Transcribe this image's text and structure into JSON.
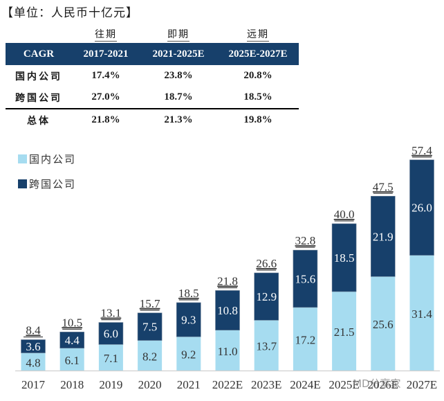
{
  "unit_label": "【单位：人民币十亿元】",
  "table": {
    "periods": [
      "",
      "往期",
      "即期",
      "远期"
    ],
    "header": [
      "CAGR",
      "2017-2021",
      "2021-2025E",
      "2025E-2027E"
    ],
    "rows": [
      {
        "label": "国内公司",
        "values": [
          "17.4%",
          "23.8%",
          "20.8%"
        ]
      },
      {
        "label": "跨国公司",
        "values": [
          "27.0%",
          "18.7%",
          "18.5%"
        ]
      },
      {
        "label": "总体",
        "values": [
          "21.8%",
          "21.3%",
          "19.8%"
        ]
      }
    ]
  },
  "colors": {
    "domestic": "#a6dcf0",
    "multinational": "#17406b",
    "table_header": "#17406b"
  },
  "watermark": "MD分享家",
  "chart_data": {
    "type": "bar",
    "stacked": true,
    "title": "",
    "xlabel": "",
    "ylabel": "",
    "legend_position": "top-left",
    "categories": [
      "2017",
      "2018",
      "2019",
      "2020",
      "2021",
      "2022E",
      "2023E",
      "2024E",
      "2025E",
      "2026E",
      "2027E"
    ],
    "series": [
      {
        "name": "国内公司",
        "color": "#a6dcf0",
        "values": [
          4.8,
          6.1,
          7.1,
          8.2,
          9.2,
          11.0,
          13.7,
          17.2,
          21.5,
          25.6,
          31.4
        ],
        "labels": [
          "4.8",
          "6.1",
          "7.1",
          "8.2",
          "9.2",
          "11.0",
          "13.7",
          "17.2",
          "21.5",
          "25.6",
          "31.4"
        ]
      },
      {
        "name": "跨国公司",
        "color": "#17406b",
        "values": [
          3.6,
          4.4,
          6.0,
          7.5,
          9.3,
          10.8,
          12.9,
          15.6,
          18.5,
          21.9,
          26.0
        ],
        "labels": [
          "3.6",
          "4.4",
          "6.0",
          "7.5",
          "9.3",
          "10.8",
          "12.9",
          "15.6",
          "18.5",
          "21.9",
          "26.0"
        ]
      }
    ],
    "totals": [
      8.4,
      10.5,
      13.1,
      15.7,
      18.5,
      21.8,
      26.6,
      32.8,
      40.0,
      47.5,
      57.4
    ],
    "total_labels": [
      "8.4",
      "10.5",
      "13.1",
      "15.7",
      "18.5",
      "21.8",
      "26.6",
      "32.8",
      "40.0",
      "47.5",
      "57.4"
    ],
    "ylim": [
      0,
      60
    ],
    "grid": false
  }
}
